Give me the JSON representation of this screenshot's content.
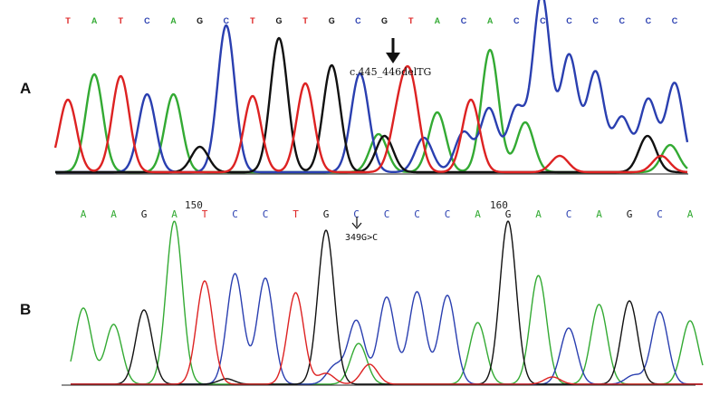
{
  "colors": {
    "A": "#33aa33",
    "C": "#2a3fb0",
    "G": "#111111",
    "T": "#dd2222"
  },
  "panelA": {
    "label": "A",
    "bases": [
      "T",
      "A",
      "T",
      "C",
      "A",
      "G",
      "C",
      "T",
      "G",
      "T",
      "G",
      "C",
      "G",
      "T",
      "A",
      "C",
      "A",
      "C",
      "C",
      "C",
      "C",
      "C",
      "C",
      "C"
    ],
    "annotation": "c.445_446delTG"
  },
  "panelB": {
    "label": "B",
    "bases": [
      "A",
      "A",
      "G",
      "A",
      "T",
      "C",
      "C",
      "T",
      "G",
      "C",
      "C",
      "C",
      "C",
      "A",
      "G",
      "A",
      "C",
      "A",
      "G",
      "C",
      "A"
    ],
    "position_labels": [
      {
        "text": "150"
      },
      {
        "text": "160"
      }
    ],
    "annotation": "349G>C"
  }
}
